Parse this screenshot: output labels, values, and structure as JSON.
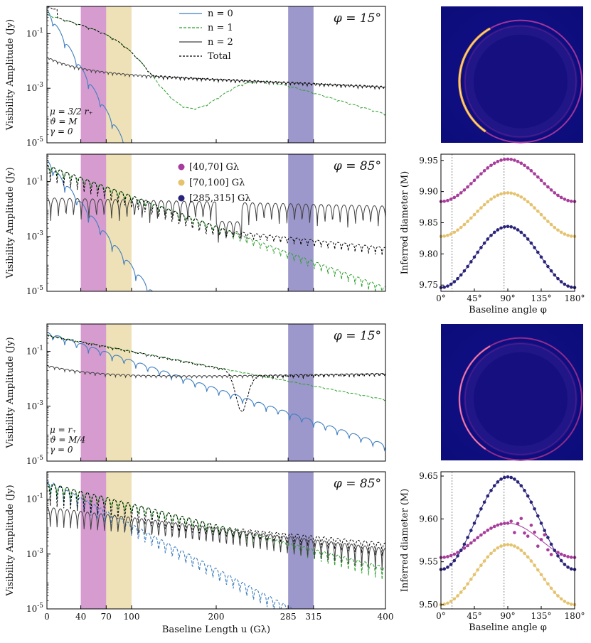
{
  "chart_data": [
    {
      "type": "line",
      "name": "panel-a",
      "ylabel": "Visibility Amplitude (Jy)",
      "xlim": [
        0,
        400
      ],
      "ylim_log10": [
        -5,
        0
      ],
      "y_ticks": [
        "10^-5",
        "10^-3",
        "10^-1"
      ],
      "phi_label": "φ = 15°",
      "params": [
        "μ = 3/2 r₊",
        "ϑ = M",
        "γ = 0"
      ],
      "legend": [
        "n = 0",
        "n = 1",
        "n = 2",
        "Total"
      ],
      "bands": [
        [
          40,
          70
        ],
        [
          70,
          100
        ],
        [
          285,
          315
        ]
      ]
    },
    {
      "type": "line",
      "name": "panel-b",
      "ylabel": "Visibility Amplitude (Jy)",
      "xlim": [
        0,
        400
      ],
      "ylim_log10": [
        -5,
        0
      ],
      "y_ticks": [
        "10^-5",
        "10^-3",
        "10^-1"
      ],
      "phi_label": "φ = 85°",
      "legend": [
        "[40,70]  Gλ",
        "[70,100]  Gλ",
        "[285,315]  Gλ"
      ],
      "bands": [
        [
          40,
          70
        ],
        [
          70,
          100
        ],
        [
          285,
          315
        ]
      ]
    },
    {
      "type": "scatter",
      "name": "panel-c",
      "xlabel": "Baseline angle φ",
      "ylabel": "Inferred diameter (M)",
      "xlim": [
        0,
        180
      ],
      "ylim": [
        9.74,
        9.96
      ],
      "x_ticks": [
        "0°",
        "45°",
        "90°",
        "135°",
        "180°"
      ],
      "y_ticks": [
        "9.75",
        "9.80",
        "9.85",
        "9.90",
        "9.95"
      ],
      "vlines": [
        15,
        85
      ],
      "series": [
        {
          "name": "[40,70] Gλ",
          "mean": 9.918,
          "amp": 0.034
        },
        {
          "name": "[70,100] Gλ",
          "mean": 9.863,
          "amp": 0.035
        },
        {
          "name": "[285,315] Gλ",
          "mean": 9.795,
          "amp": 0.049
        }
      ]
    },
    {
      "type": "line",
      "name": "panel-d",
      "ylabel": "Visibility Amplitude (Jy)",
      "xlim": [
        0,
        400
      ],
      "ylim_log10": [
        -5,
        0
      ],
      "y_ticks": [
        "10^-5",
        "10^-3",
        "10^-1"
      ],
      "phi_label": "φ = 15°",
      "params": [
        "μ = r₊",
        "ϑ = M/4",
        "γ = 0"
      ],
      "bands": [
        [
          40,
          70
        ],
        [
          70,
          100
        ],
        [
          285,
          315
        ]
      ]
    },
    {
      "type": "line",
      "name": "panel-e",
      "xlabel": "Baseline Length u (Gλ)",
      "ylabel": "Visibility Amplitude (Jy)",
      "xlim": [
        0,
        400
      ],
      "ylim_log10": [
        -5,
        0
      ],
      "x_ticks": [
        "0",
        "40",
        "70",
        "100",
        "200",
        "285",
        "315",
        "400"
      ],
      "y_ticks": [
        "10^-5",
        "10^-3",
        "10^-1"
      ],
      "phi_label": "φ = 85°",
      "bands": [
        [
          40,
          70
        ],
        [
          70,
          100
        ],
        [
          285,
          315
        ]
      ]
    },
    {
      "type": "scatter",
      "name": "panel-f",
      "xlabel": "Baseline angle φ",
      "ylabel": "Inferred diameter (M)",
      "xlim": [
        0,
        180
      ],
      "ylim": [
        9.495,
        9.655
      ],
      "x_ticks": [
        "0°",
        "45°",
        "90°",
        "135°",
        "180°"
      ],
      "y_ticks": [
        "9.50",
        "9.55",
        "9.60",
        "9.65"
      ],
      "vlines": [
        15,
        85
      ],
      "series": [
        {
          "name": "[40,70] Gλ",
          "mean": 9.575,
          "amp": 0.02
        },
        {
          "name": "[70,100] Gλ",
          "mean": 9.535,
          "amp": 0.035
        },
        {
          "name": "[285,315] Gλ",
          "mean": 9.595,
          "amp": 0.054
        }
      ]
    }
  ],
  "colors": {
    "n0": "#3f7fc0",
    "n1": "#2ca02c",
    "n2": "#404040",
    "total": "#000000",
    "band1": "#b54aa9",
    "band2": "#e0c97c",
    "band3": "#4d44a0",
    "dots1": "#a83c9c",
    "dots2": "#e5c26e",
    "dots3": "#29237a"
  }
}
